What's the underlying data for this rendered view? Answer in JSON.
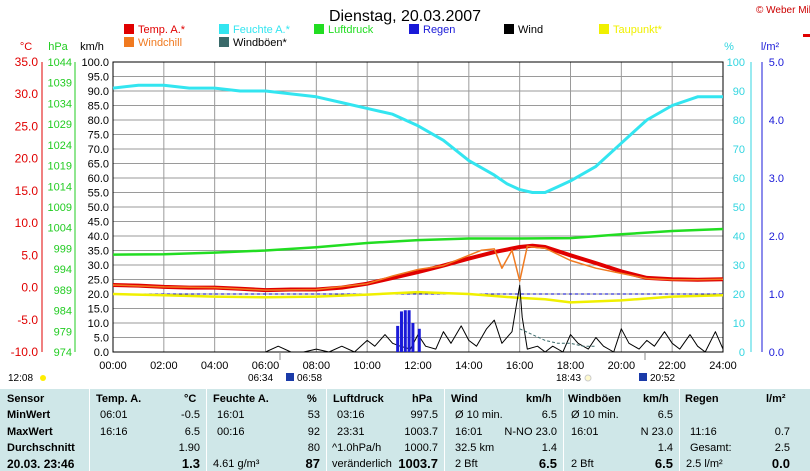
{
  "title": "Dienstag, 20.03.2007",
  "credit": "© Weber Mike",
  "axis_units": {
    "temp": "°C",
    "pressure": "hPa",
    "wind": "km/h",
    "humidity": "%",
    "rain": "l/m²"
  },
  "legend": [
    {
      "label": "Temp. A.*",
      "color": "#e00000"
    },
    {
      "label": "Feuchte A.*",
      "color": "#33e5f0"
    },
    {
      "label": "Luftdruck",
      "color": "#22dd22"
    },
    {
      "label": "Regen",
      "color": "#1a1ad8"
    },
    {
      "label": "Wind",
      "color": "#000000"
    },
    {
      "label": "Taupunkt*",
      "color": "#f0f000"
    },
    {
      "label": "Windchill",
      "color": "#f07a20"
    },
    {
      "label": "Windböen*",
      "color": "#3a6a6a"
    }
  ],
  "sun": {
    "sunrise": "06:34",
    "sunset": "18:43",
    "time_left": "12:08",
    "time_right": "20:52",
    "mid_left": "06:58"
  },
  "chart_data": {
    "type": "line",
    "x_axis": {
      "ticks": [
        "00:00",
        "02:00",
        "04:00",
        "06:00",
        "08:00",
        "10:00",
        "12:00",
        "14:00",
        "16:00",
        "18:00",
        "20:00",
        "22:00",
        "24:00"
      ],
      "range_hours": [
        0,
        24
      ]
    },
    "y_axes": {
      "temp": {
        "unit": "°C",
        "range": [
          -10,
          35
        ],
        "ticks": [
          "-10.0",
          "-5.0",
          "0.0",
          "5.0",
          "10.0",
          "15.0",
          "20.0",
          "25.0",
          "30.0",
          "35.0"
        ]
      },
      "pressure": {
        "unit": "hPa",
        "range": [
          974,
          1044
        ],
        "ticks": [
          "974",
          "979",
          "984",
          "989",
          "994",
          "999",
          "1004",
          "1009",
          "1014",
          "1019",
          "1024",
          "1029",
          "1034",
          "1039",
          "1044"
        ]
      },
      "wind": {
        "unit": "km/h",
        "range": [
          0,
          100
        ],
        "ticks": [
          "0.0",
          "5.0",
          "10.0",
          "15.0",
          "20.0",
          "25.0",
          "30.0",
          "35.0",
          "40.0",
          "45.0",
          "50.0",
          "55.0",
          "60.0",
          "65.0",
          "70.0",
          "75.0",
          "80.0",
          "85.0",
          "90.0",
          "95.0",
          "100.0"
        ]
      },
      "humidity": {
        "unit": "%",
        "range": [
          0,
          100
        ],
        "ticks": [
          "0",
          "10",
          "20",
          "30",
          "40",
          "50",
          "60",
          "70",
          "80",
          "90",
          "100"
        ]
      },
      "rain": {
        "unit": "l/m²",
        "range": [
          0,
          5
        ],
        "ticks": [
          "0.0",
          "1.0",
          "2.0",
          "3.0",
          "4.0",
          "5.0"
        ]
      }
    },
    "series": [
      {
        "name": "Feuchte A.*",
        "axis": "humidity",
        "color": "#33e5f0",
        "x": [
          0,
          1,
          2,
          3,
          4,
          5,
          6,
          7,
          8,
          9,
          10,
          11,
          12,
          13,
          14,
          15,
          15.5,
          16,
          16.5,
          17,
          17.5,
          18,
          19,
          20,
          21,
          22,
          23,
          24
        ],
        "y": [
          91,
          92,
          92,
          91,
          91,
          90,
          90,
          89,
          88,
          86,
          84,
          82,
          78,
          73,
          66,
          61,
          58,
          56,
          55,
          55,
          57,
          59,
          64,
          72,
          80,
          85,
          88,
          88
        ]
      },
      {
        "name": "Luftdruck",
        "axis": "pressure",
        "color": "#22dd22",
        "x": [
          0,
          2,
          4,
          6,
          8,
          10,
          12,
          14,
          16,
          18,
          20,
          22,
          24
        ],
        "y": [
          997.5,
          997.6,
          998.0,
          998.5,
          999.3,
          1000.3,
          1001.0,
          1001.4,
          1001.4,
          1001.5,
          1002.4,
          1003.2,
          1003.7
        ]
      },
      {
        "name": "Temp. A.*",
        "axis": "temp",
        "color": "#e00000",
        "x": [
          0,
          1,
          2,
          3,
          4,
          5,
          6,
          7,
          8,
          9,
          10,
          11,
          12,
          13,
          14,
          15,
          16,
          16.5,
          17,
          18,
          19,
          20,
          21,
          22,
          23,
          24
        ],
        "y": [
          0.4,
          0.3,
          0.1,
          0.0,
          0.0,
          -0.2,
          -0.4,
          -0.3,
          -0.3,
          0.0,
          0.6,
          1.5,
          2.4,
          3.4,
          4.5,
          5.5,
          6.3,
          6.5,
          6.3,
          5.0,
          3.8,
          2.5,
          1.5,
          1.3,
          1.2,
          1.3
        ]
      },
      {
        "name": "Windchill",
        "axis": "temp",
        "color": "#f07a20",
        "x": [
          0,
          2,
          4,
          6,
          8,
          10,
          11,
          12,
          13,
          14,
          14.5,
          15,
          15.3,
          15.7,
          16,
          16.3,
          16.7,
          17,
          18,
          19,
          20,
          21,
          22,
          23,
          24
        ],
        "y": [
          0.4,
          0.1,
          0.0,
          -0.4,
          -0.3,
          0.6,
          1.8,
          2.8,
          3.4,
          5.0,
          5.8,
          6.0,
          3.0,
          5.8,
          1.0,
          6.4,
          6.2,
          6.1,
          4.2,
          3.0,
          2.2,
          1.4,
          1.2,
          1.2,
          1.3
        ]
      },
      {
        "name": "Taupunkt*",
        "axis": "temp",
        "color": "#f0f000",
        "x": [
          0,
          2,
          4,
          6,
          8,
          10,
          12,
          14,
          16,
          17,
          18,
          20,
          22,
          24
        ],
        "y": [
          -1.0,
          -1.2,
          -1.4,
          -1.5,
          -1.4,
          -1.1,
          -0.7,
          -1.0,
          -1.6,
          -1.8,
          -2.3,
          -2.0,
          -1.4,
          -1.2
        ]
      },
      {
        "name": "Wind",
        "axis": "wind",
        "color": "#000000",
        "x": [
          0,
          6,
          6.5,
          7,
          7.5,
          8,
          8.5,
          9,
          9.5,
          10,
          10.3,
          10.7,
          11,
          11.3,
          11.7,
          12,
          12.3,
          12.7,
          13,
          13.3,
          13.7,
          14,
          14.3,
          14.7,
          15,
          15.3,
          15.7,
          16,
          16.1,
          16.3,
          16.7,
          17,
          17.3,
          17.7,
          18,
          18.3,
          18.7,
          19,
          19.3,
          19.7,
          20,
          20.3,
          20.7,
          21,
          21.3,
          21.7,
          22,
          22.3,
          22.7,
          23,
          23.3,
          23.7,
          24
        ],
        "y": [
          0,
          0,
          2,
          0,
          0,
          1,
          0,
          2,
          0,
          4,
          2,
          6,
          3,
          2,
          1,
          6,
          2,
          1,
          7,
          3,
          9,
          4,
          2,
          8,
          11,
          3,
          7,
          23,
          12,
          1,
          2,
          0,
          2,
          0,
          6,
          3,
          1,
          5,
          2,
          0,
          8,
          3,
          1,
          4,
          2,
          7,
          3,
          1,
          6,
          2,
          0,
          7,
          1
        ]
      },
      {
        "name": "Windböen*",
        "axis": "wind",
        "color": "#3a6a6a",
        "x": [
          16,
          16.5,
          17,
          17.5,
          18,
          18.5,
          19
        ],
        "y": [
          8,
          6,
          4,
          3,
          3,
          2,
          2
        ]
      },
      {
        "name": "Regen",
        "axis": "rain",
        "color": "#1a1ad8",
        "type": "bar",
        "x": [
          11.2,
          11.35,
          11.5,
          11.65,
          11.8,
          12.05
        ],
        "y": [
          0.45,
          0.7,
          0.72,
          0.72,
          0.5,
          0.4
        ]
      }
    ]
  },
  "stats": {
    "sensor": {
      "head": "Sensor",
      "rows": [
        "MinWert",
        "MaxWert",
        "Durchschnitt"
      ],
      "last": "20.03. 23:46"
    },
    "temp": {
      "head": "Temp. A.",
      "unit": "°C",
      "min_time": "06:01",
      "min": "-0.5",
      "max_time": "16:16",
      "max": "6.5",
      "avg": "1.90",
      "cur": "1.3"
    },
    "humidity": {
      "head": "Feuchte A.",
      "unit": "%",
      "min_time": "16:01",
      "min": "53",
      "max_time": "00:16",
      "max": "92",
      "avg": "80",
      "extra": "4.61 g/m³",
      "cur": "87"
    },
    "pressure": {
      "head": "Luftdruck",
      "unit": "hPa",
      "min_time": "03:16",
      "min": "997.5",
      "max_time": "23:31",
      "max": "1003.7",
      "avg_label": "^1.0hPa/h",
      "avg": "1000.7",
      "trend": "veränderlich",
      "cur": "1003.7"
    },
    "wind": {
      "head": "Wind",
      "unit": "km/h",
      "r1a": "Ø 10 min.",
      "r1b": "6.5",
      "r2a": "16:01",
      "r2b": "N-NO 23.0",
      "r3a": "32.5 km",
      "r3b": "1.4",
      "r4a": "2 Bft",
      "r4b": "6.5"
    },
    "gust": {
      "head": "Windböen",
      "unit": "km/h",
      "r1a": "Ø 10 min.",
      "r1b": "6.5",
      "r2a": "16:01",
      "r2b": "N 23.0",
      "r3b": "1.4",
      "r4a": "2 Bft",
      "r4b": "6.5"
    },
    "rain": {
      "head": "Regen",
      "unit": "l/m²",
      "r2a": "11:16",
      "r2b": "0.7",
      "r3a": "Gesamt:",
      "r3b": "2.5",
      "r4a": "2.5 l/m²",
      "r4b": "0.0"
    }
  }
}
